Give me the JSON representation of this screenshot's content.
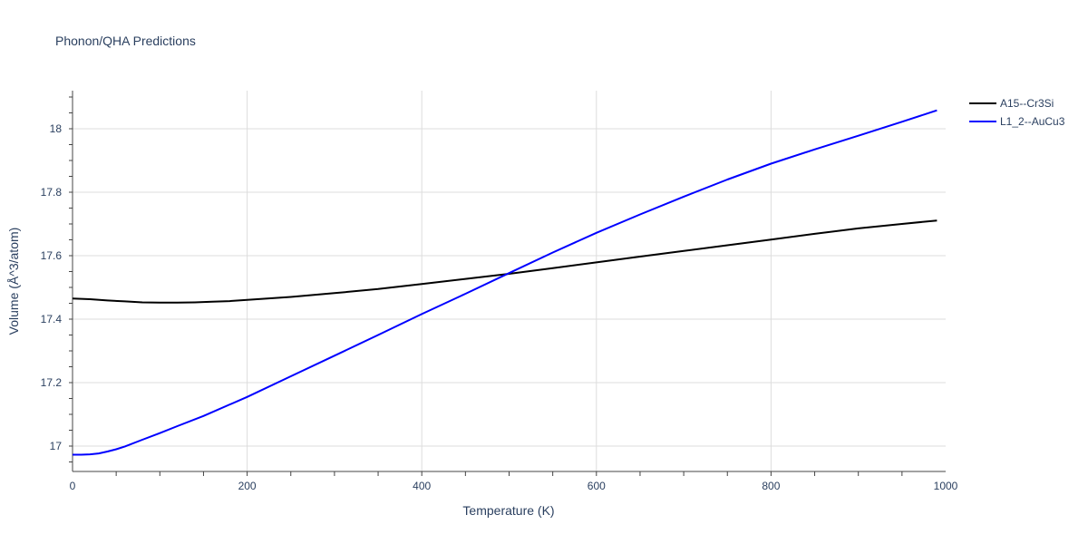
{
  "chart_data": {
    "type": "line",
    "title": "Phonon/QHA Predictions",
    "xlabel": "Temperature (K)",
    "ylabel": "Volume (Å^3/atom)",
    "xlim": [
      0,
      1000
    ],
    "ylim": [
      16.92,
      18.12
    ],
    "xticks": [
      0,
      200,
      400,
      600,
      800,
      1000
    ],
    "xtick_labels": [
      "0",
      "200",
      "400",
      "600",
      "800",
      "1000"
    ],
    "yticks": [
      17,
      17.2,
      17.4,
      17.6,
      17.8,
      18
    ],
    "ytick_labels": [
      "17",
      "17.2",
      "17.4",
      "17.6",
      "17.8",
      "18"
    ],
    "grid": true,
    "legend_position": "top-right",
    "series": [
      {
        "name": "A15--Cr3Si",
        "color": "#000000",
        "x": [
          0,
          20,
          40,
          60,
          80,
          100,
          120,
          140,
          160,
          180,
          200,
          250,
          300,
          350,
          400,
          450,
          500,
          550,
          600,
          650,
          700,
          750,
          800,
          850,
          900,
          950,
          990
        ],
        "y": [
          17.465,
          17.463,
          17.459,
          17.456,
          17.453,
          17.452,
          17.452,
          17.453,
          17.455,
          17.457,
          17.461,
          17.47,
          17.482,
          17.495,
          17.511,
          17.527,
          17.543,
          17.561,
          17.579,
          17.597,
          17.615,
          17.633,
          17.651,
          17.669,
          17.686,
          17.7,
          17.711
        ]
      },
      {
        "name": "L1_2--AuCu3",
        "color": "#0000ff",
        "x": [
          0,
          10,
          20,
          30,
          40,
          50,
          60,
          80,
          100,
          120,
          150,
          200,
          250,
          300,
          350,
          400,
          450,
          500,
          550,
          600,
          650,
          700,
          750,
          800,
          850,
          900,
          950,
          990
        ],
        "y": [
          16.973,
          16.973,
          16.974,
          16.977,
          16.983,
          16.99,
          16.999,
          17.02,
          17.041,
          17.063,
          17.095,
          17.155,
          17.22,
          17.285,
          17.35,
          17.416,
          17.48,
          17.545,
          17.61,
          17.672,
          17.73,
          17.786,
          17.84,
          17.89,
          17.935,
          17.978,
          18.022,
          18.058
        ]
      }
    ]
  }
}
